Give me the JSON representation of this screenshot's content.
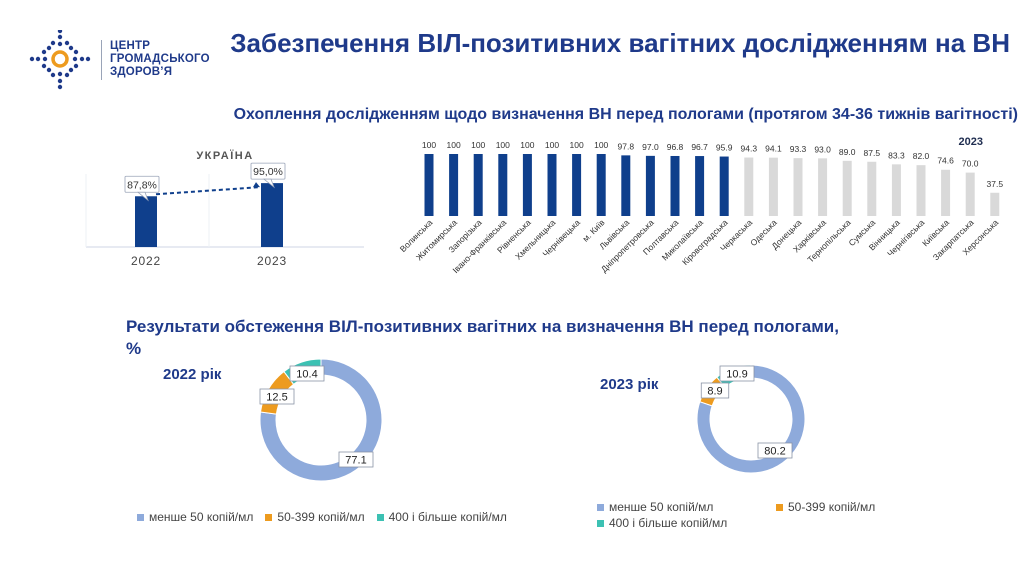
{
  "header": {
    "logo_lines": [
      "ЦЕНТР",
      "ГРОМАДСЬКОГО",
      "ЗДОРОВ’Я"
    ],
    "title": "Забезпечення ВІЛ-позитивних вагітних дослідженням на ВН",
    "subtitle": "Охоплення дослідженням щодо визначення ВН перед пологами (протягом 34-36 тижнів вагітності)"
  },
  "section2_title": "Результати обстеження ВІЛ-позитивних вагітних на визначення ВН перед пологами, %",
  "colors": {
    "navy": "#0f3f8c",
    "grey": "#d9d9d9",
    "pie_blue": "#8eaadb",
    "pie_orange": "#ed9b1f",
    "pie_teal": "#3cc1b3"
  },
  "chart_data": [
    {
      "type": "bar",
      "title": "УКРАЇНА",
      "categories": [
        "2022",
        "2023"
      ],
      "values": [
        87.8,
        95.0
      ],
      "data_labels": [
        "87,8%",
        "95,0%"
      ],
      "ylim": [
        0,
        100
      ],
      "trend_line": true
    },
    {
      "type": "bar",
      "title": "2023",
      "categories": [
        "Волинська",
        "Житомирська",
        "Запорізька",
        "Івано-Франківська",
        "Рівненська",
        "Хмельницька",
        "Чернівецька",
        "м. Київ",
        "Львівська",
        "Дніпропетровська",
        "Полтавська",
        "Миколаївська",
        "Кіровоградська",
        "Черкаська",
        "Одеська",
        "Донецька",
        "Харківська",
        "Тернопільська",
        "Сумська",
        "Вінницька",
        "Чернігівська",
        "Київська",
        "Закарпатська",
        "Херсонська"
      ],
      "values": [
        100,
        100,
        100,
        100,
        100,
        100,
        100,
        100,
        97.8,
        97.0,
        96.8,
        96.7,
        95.9,
        94.3,
        94.1,
        93.3,
        93.0,
        89.0,
        87.5,
        83.3,
        82.0,
        74.6,
        70.0,
        37.5
      ],
      "data_labels": [
        "100",
        "100",
        "100",
        "100",
        "100",
        "100",
        "100",
        "100",
        "97.8",
        "97.0",
        "96.8",
        "96.7",
        "95.9",
        "94.3",
        "94.1",
        "93.3",
        "93.0",
        "89.0",
        "87.5",
        "83.3",
        "82.0",
        "74.6",
        "70.0",
        "37.5"
      ],
      "highlight_count": 13,
      "ylim": [
        0,
        100
      ]
    },
    {
      "type": "pie",
      "title": "2022 рік",
      "labels": [
        "менше 50 копій/мл",
        "50-399 копій/мл",
        "400 і більше копій/мл"
      ],
      "values": [
        77.1,
        12.5,
        10.4
      ],
      "data_labels": [
        "77.1",
        "12.5",
        "10.4"
      ],
      "donut": true
    },
    {
      "type": "pie",
      "title": "2023 рік",
      "labels": [
        "менше 50 копій/мл",
        "50-399 копій/мл",
        "400 і більше копій/мл"
      ],
      "values": [
        80.2,
        8.9,
        10.9
      ],
      "data_labels": [
        "80.2",
        "8.9",
        "10.9"
      ],
      "donut": true
    }
  ]
}
